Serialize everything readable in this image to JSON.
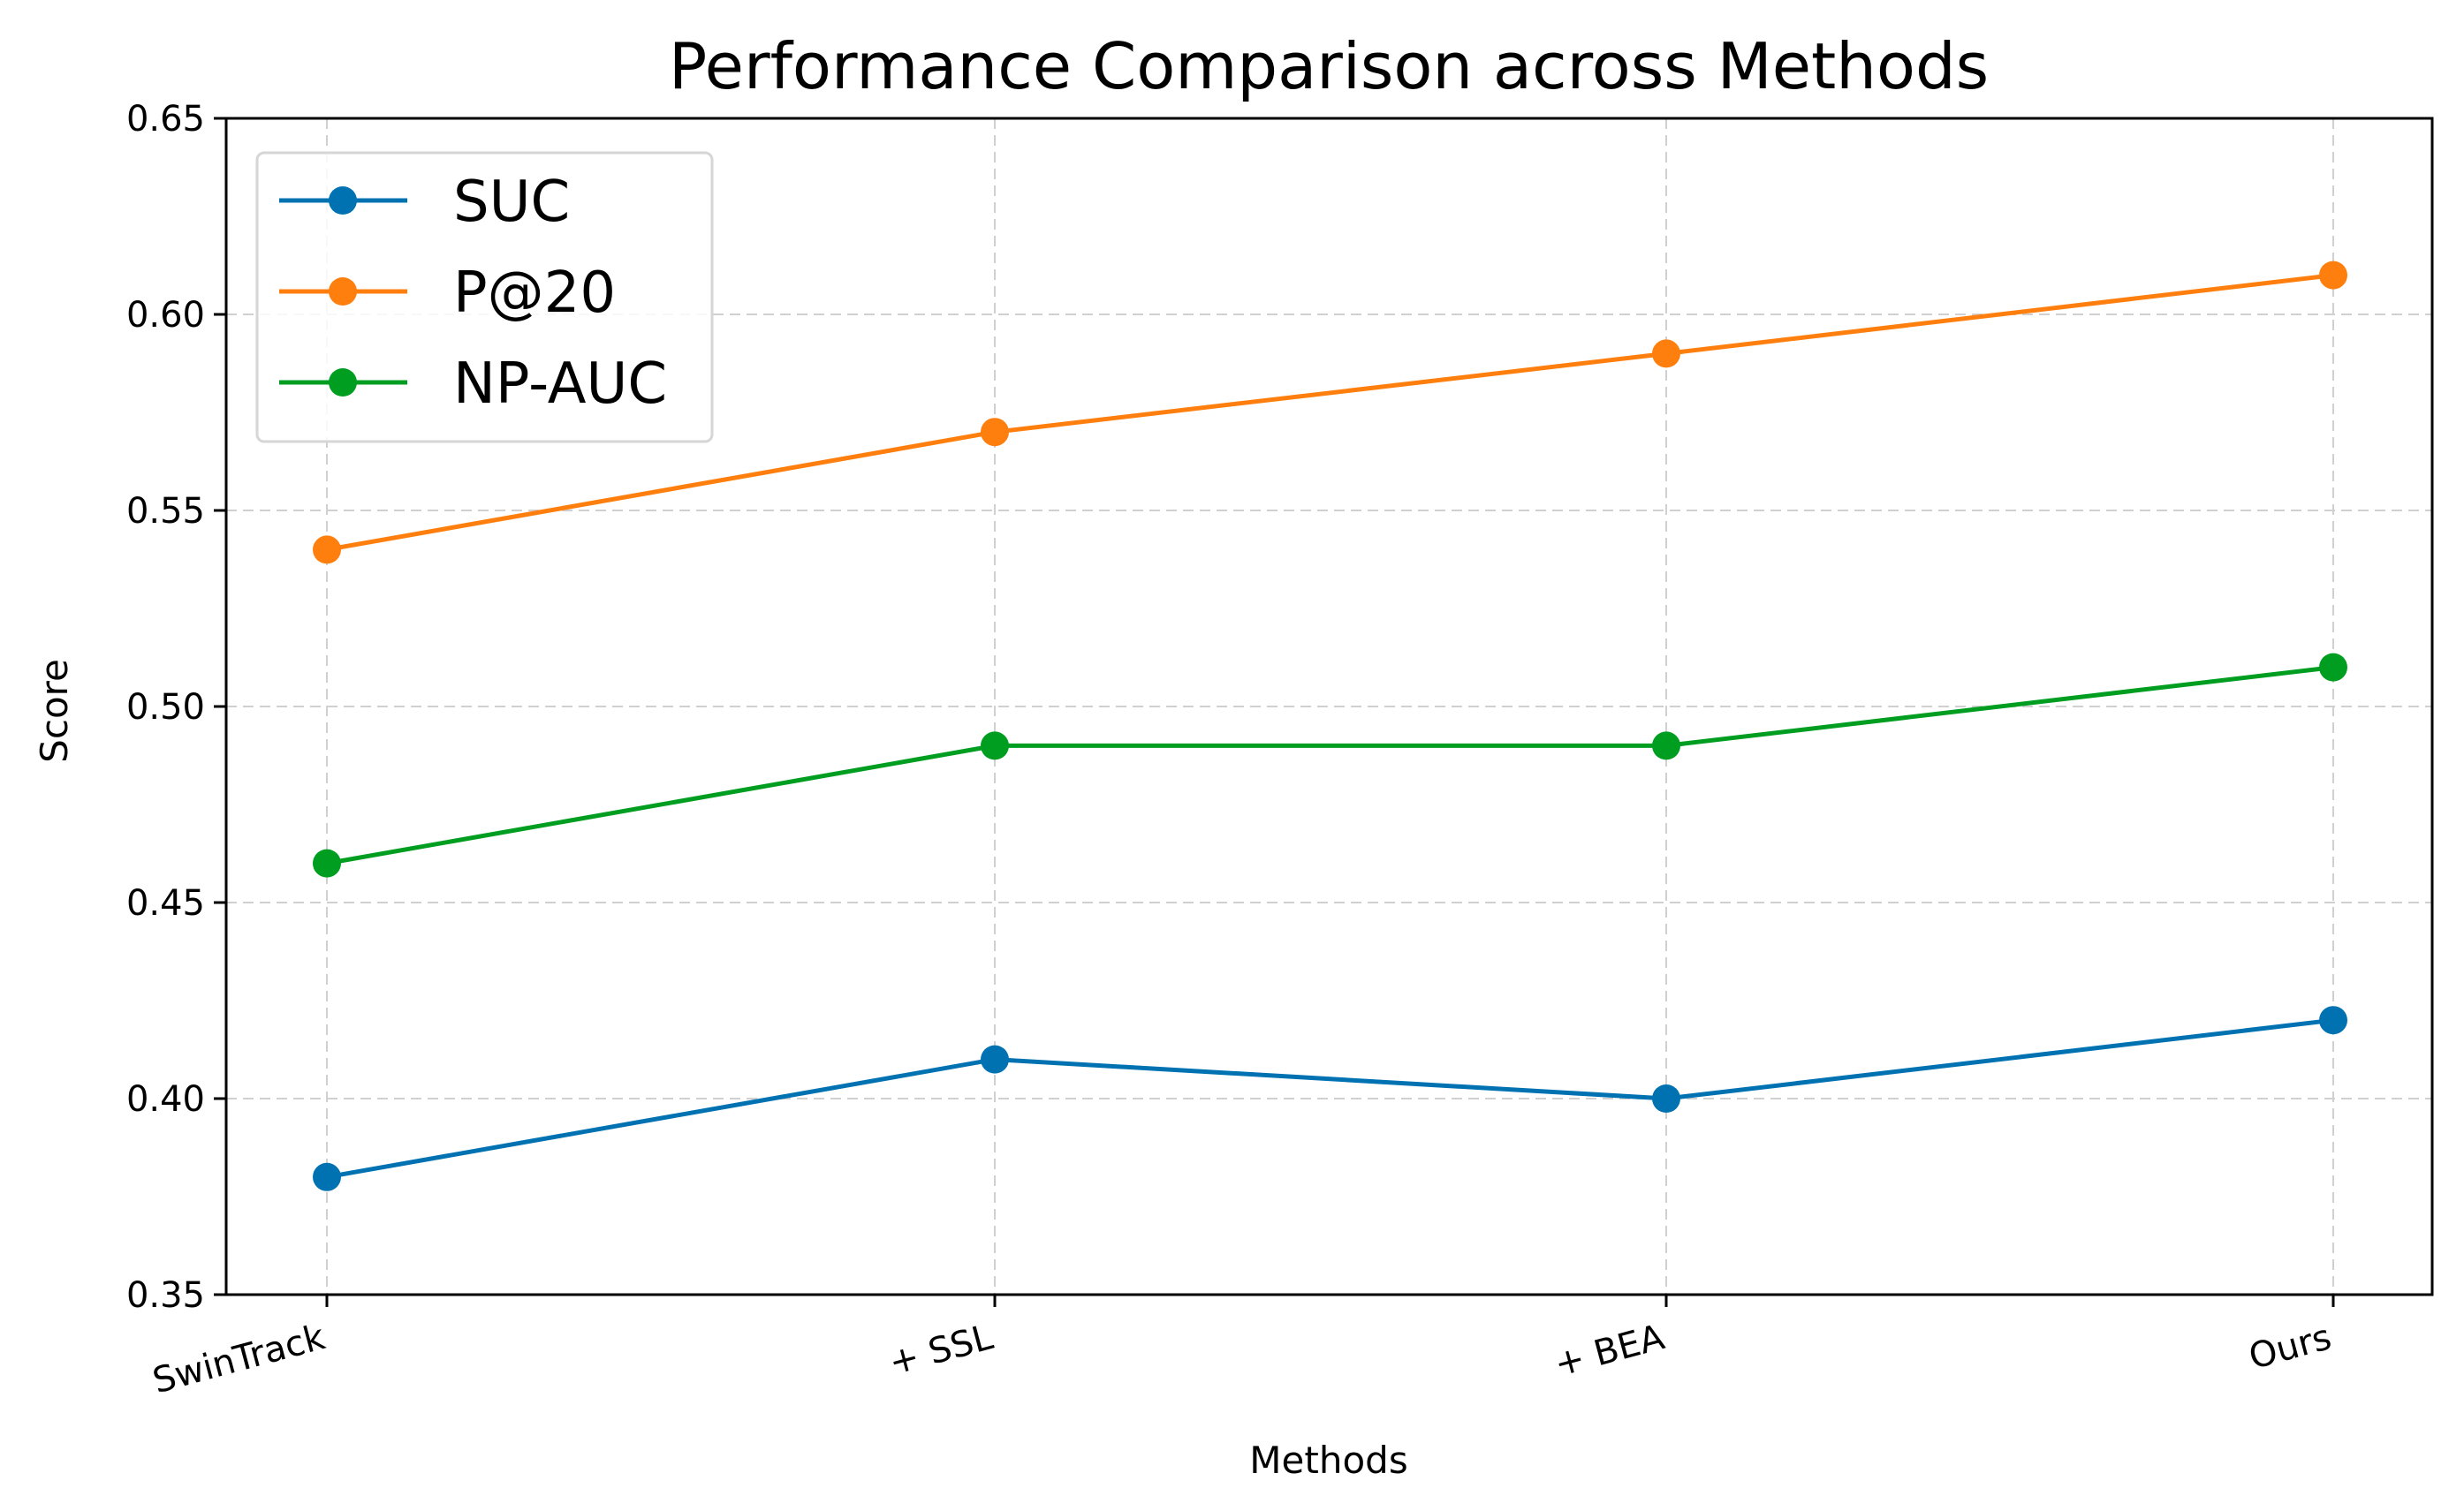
{
  "chart_data": {
    "type": "line",
    "title": "Performance Comparison across Methods",
    "xlabel": "Methods",
    "ylabel": "Score",
    "categories": [
      "SwinTrack",
      "+ SSL",
      "+ BEA",
      "Ours"
    ],
    "ylim": [
      0.35,
      0.65
    ],
    "yticks": [
      "0.35",
      "0.40",
      "0.45",
      "0.50",
      "0.55",
      "0.60",
      "0.65"
    ],
    "grid": true,
    "legend_position": "top-left",
    "series": [
      {
        "name": "SUC",
        "color": "#0072b2",
        "values": [
          0.38,
          0.41,
          0.4,
          0.42
        ]
      },
      {
        "name": "P@20",
        "color": "#ff7f0e",
        "values": [
          0.54,
          0.57,
          0.59,
          0.61
        ]
      },
      {
        "name": "NP-AUC",
        "color": "#009e20",
        "values": [
          0.46,
          0.49,
          0.49,
          0.51
        ]
      }
    ]
  }
}
